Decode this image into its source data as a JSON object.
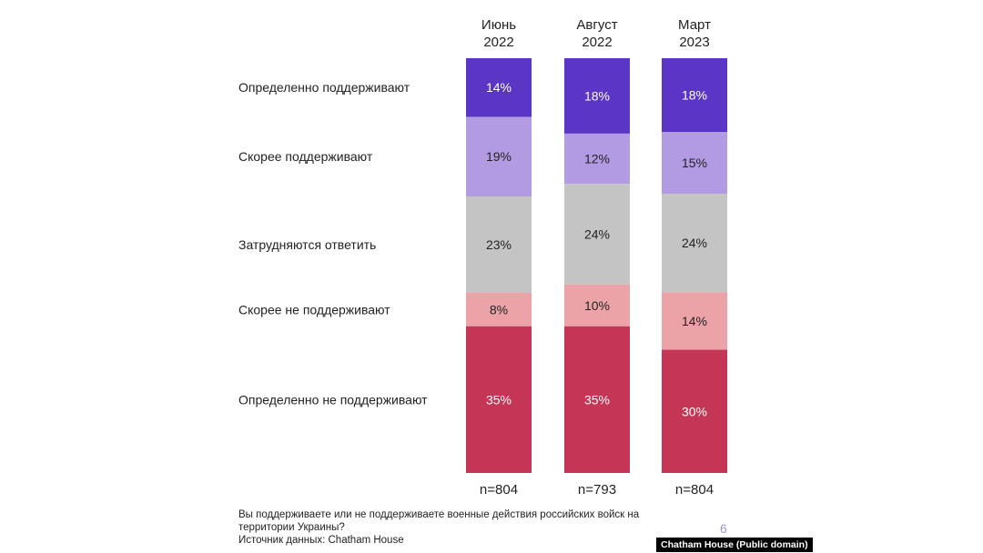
{
  "chart_data": {
    "type": "bar",
    "stacked": true,
    "categories": [
      "Июнь 2022",
      "Август 2022",
      "Март 2023"
    ],
    "category_lines": [
      [
        "Июнь",
        "2022"
      ],
      [
        "Август",
        "2022"
      ],
      [
        "Март",
        "2023"
      ]
    ],
    "sample_sizes": [
      "n=804",
      "n=793",
      "n=804"
    ],
    "series": [
      {
        "name": "Определенно поддерживают",
        "color": "#5b35c6",
        "text_color": "#ffffff",
        "values": [
          14,
          18,
          18
        ]
      },
      {
        "name": "Скорее поддерживают",
        "color": "#b39be3",
        "text_color": "#222222",
        "values": [
          19,
          12,
          15
        ]
      },
      {
        "name": "Затрудняются ответить",
        "color": "#c4c4c4",
        "text_color": "#222222",
        "values": [
          23,
          24,
          24
        ]
      },
      {
        "name": "Скорее не поддерживают",
        "color": "#eba3a8",
        "text_color": "#222222",
        "values": [
          8,
          10,
          14
        ]
      },
      {
        "name": "Определенно не поддерживают",
        "color": "#c53656",
        "text_color": "#ffffff",
        "values": [
          35,
          35,
          30
        ]
      }
    ],
    "value_suffix": "%",
    "legend": "left"
  },
  "footnote": {
    "question_line1": "Вы поддерживаете или не поддерживаете военные действия российских войск на",
    "question_line2": "территории Украины?",
    "source": "Источник данных: Chatham House"
  },
  "page_number": "6",
  "credit": "Chatham House (Public domain)"
}
